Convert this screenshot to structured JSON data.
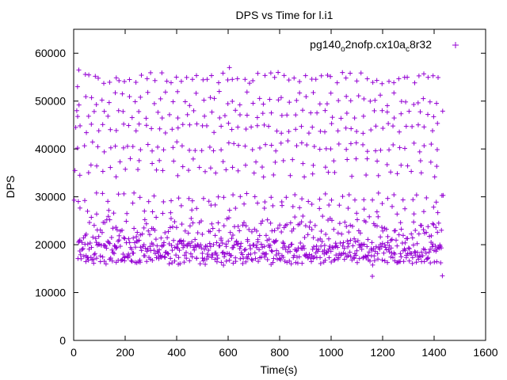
{
  "chart_data": {
    "type": "scatter",
    "title": "DPS vs Time for l.i1",
    "xlabel": "Time(s)",
    "ylabel": "DPS",
    "xlim": [
      0,
      1600
    ],
    "ylim": [
      0,
      65000
    ],
    "xticks": [
      "0",
      "200",
      "400",
      "600",
      "800",
      "1000",
      "1200",
      "1400",
      "1600"
    ],
    "yticks": [
      "0",
      "10000",
      "20000",
      "30000",
      "40000",
      "50000",
      "60000"
    ],
    "grid": false,
    "legend_position": "top-right",
    "series": [
      {
        "name_parts": [
          "pg140",
          "o",
          "2nofp.cx10a",
          "c",
          "8r32"
        ],
        "color": "#9400d3",
        "marker": "plus",
        "bands": [
          {
            "y_center": 54800,
            "spread": 1200,
            "stride": 20,
            "spike": 57000
          },
          {
            "y_center": 50500,
            "spread": 1600,
            "stride": 24
          },
          {
            "y_center": 47200,
            "spread": 900,
            "stride": 30
          },
          {
            "y_center": 44300,
            "spread": 1100,
            "stride": 24
          },
          {
            "y_center": 40500,
            "spread": 1200,
            "stride": 24
          },
          {
            "y_center": 37000,
            "spread": 1000,
            "stride": 40
          },
          {
            "y_center": 35000,
            "spread": 900,
            "stride": 48
          },
          {
            "y_center": 29800,
            "spread": 1000,
            "stride": 30
          },
          {
            "y_center": 27500,
            "spread": 1200,
            "stride": 36
          },
          {
            "y_center": 22500,
            "spread": 3000,
            "stride": 6
          },
          {
            "y_center": 18800,
            "spread": 1800,
            "stride": 4
          },
          {
            "y_center": 16800,
            "spread": 900,
            "stride": 12
          }
        ],
        "outliers": [
          {
            "x": 2,
            "y": 29300
          },
          {
            "x": 5,
            "y": 35500
          },
          {
            "x": 8,
            "y": 44500
          },
          {
            "x": 12,
            "y": 48000
          },
          {
            "x": 15,
            "y": 53000
          },
          {
            "x": 20,
            "y": 56500
          },
          {
            "x": 1160,
            "y": 13400
          },
          {
            "x": 1432,
            "y": 13500
          },
          {
            "x": 1435,
            "y": 30300
          }
        ]
      }
    ]
  }
}
